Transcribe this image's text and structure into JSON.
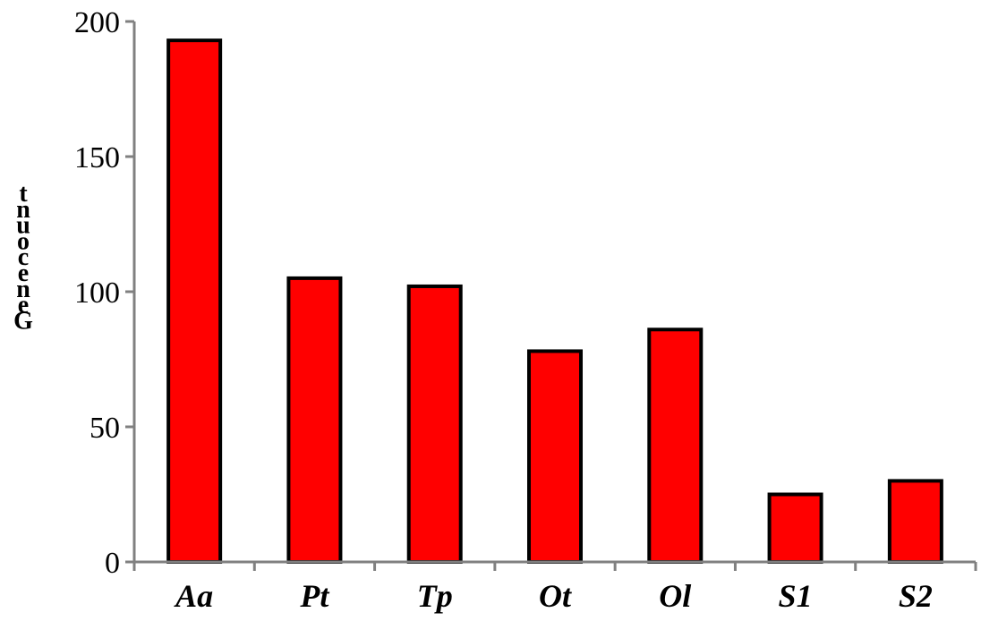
{
  "chart_data": {
    "type": "bar",
    "title": "",
    "xlabel": "",
    "ylabel": "Gene count",
    "categories": [
      "Aa",
      "Pt",
      "Tp",
      "Ot",
      "Ol",
      "S1",
      "S2"
    ],
    "series": [
      {
        "values": [
          193,
          105,
          102,
          78,
          86,
          25,
          30
        ]
      }
    ],
    "ylim": [
      0,
      200
    ],
    "yticks": [
      "0",
      "50",
      "100",
      "150",
      "200"
    ],
    "grid": false,
    "legend": "none",
    "colors": {
      "bar_fill": "#ff0000",
      "bar_stroke": "#000000",
      "axis": "#808080"
    }
  }
}
